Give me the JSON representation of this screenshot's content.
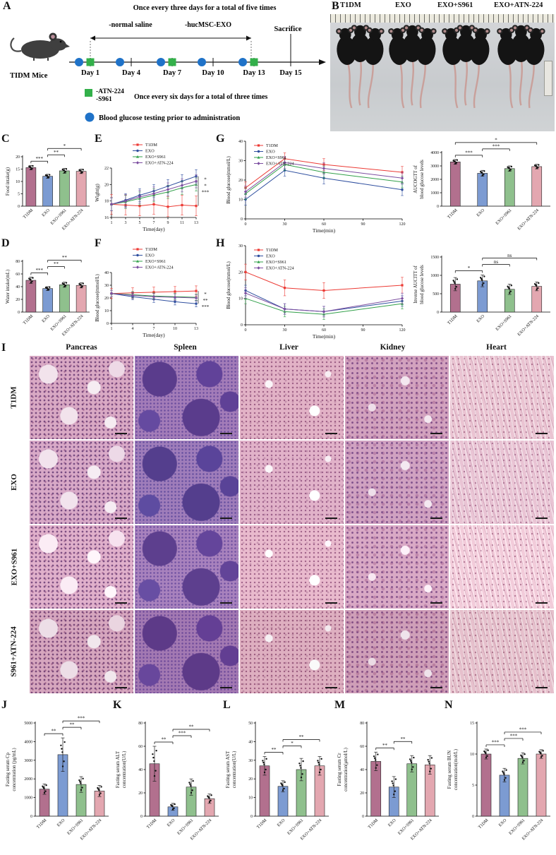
{
  "groups": [
    "T1DM",
    "EXO",
    "EXO+S961",
    "EXO+ATN-224"
  ],
  "colors": {
    "bar1": "#b2708e",
    "bar2": "#7c9bd2",
    "bar3": "#8fc08d",
    "bar4": "#e3a7b0",
    "line1": "#ec3a34",
    "line2": "#2f4f9f",
    "line3": "#32a04a",
    "line4": "#7c4ea0",
    "dot_blue": "#1f72c8",
    "square_green": "#33b04a"
  },
  "panelA": {
    "label": "A",
    "top_text": "Once every three days for a total of five times",
    "saline_text": "-normal saline",
    "exo_text": "-hucMSC-EXO",
    "sacrifice_text": "Sacrifice",
    "mice_label": "TIDM Mice",
    "days": [
      "Day 1",
      "Day 4",
      "Day 7",
      "Day 10",
      "Day 13",
      "Day 15"
    ],
    "legend_atn": "-ATN-224",
    "legend_s961": "-S961",
    "legend_square_text": "Once every six days for a total of three times",
    "legend_circle_text": "Blood glucose testing prior to administration"
  },
  "panelB": {
    "label": "B",
    "groups": [
      "T1DM",
      "EXO",
      "EXO+S961",
      "EXO+ATN-224"
    ]
  },
  "panelI": {
    "label": "I",
    "columns": [
      "Pancreas",
      "Spleen",
      "Liver",
      "Kidney",
      "Heart"
    ],
    "rows": [
      "T1DM",
      "EXO",
      "EXO+S961",
      "S961+ATN-224"
    ]
  },
  "panel_labels": {
    "C": "C",
    "D": "D",
    "E": "E",
    "F": "F",
    "G": "G",
    "H": "H",
    "J": "J",
    "K": "K",
    "L": "L",
    "M": "M",
    "N": "N"
  },
  "chart_data": {
    "C": {
      "type": "bar",
      "ylabel": "Food intake(g)",
      "categories": [
        "T1DM",
        "EXO",
        "EXO+S961",
        "EXO+ATN-224"
      ],
      "values": [
        15.6,
        12.1,
        14.3,
        14.1
      ],
      "errors": [
        0.9,
        0.8,
        1.0,
        0.9
      ],
      "ylim": [
        0,
        20
      ],
      "yticks": [
        0,
        5,
        10,
        15,
        20
      ],
      "sig": [
        {
          "a": 0,
          "b": 1,
          "label": "***"
        },
        {
          "a": 1,
          "b": 2,
          "label": "**"
        },
        {
          "a": 1,
          "b": 3,
          "label": "*"
        }
      ]
    },
    "D": {
      "type": "bar",
      "ylabel": "Water intake(mL)",
      "categories": [
        "T1DM",
        "EXO",
        "EXO+S961",
        "EXO+ATN-224"
      ],
      "values": [
        50,
        37,
        43,
        42
      ],
      "errors": [
        5,
        3,
        4,
        4
      ],
      "ylim": [
        0,
        80
      ],
      "yticks": [
        0,
        20,
        40,
        60,
        80
      ],
      "sig": [
        {
          "a": 0,
          "b": 1,
          "label": "***"
        },
        {
          "a": 1,
          "b": 2,
          "label": "**"
        },
        {
          "a": 1,
          "b": 3,
          "label": "**"
        }
      ]
    },
    "E": {
      "type": "line",
      "ylabel": "Wight(g)",
      "xlabel": "Time(day)",
      "x": [
        1,
        3,
        5,
        7,
        9,
        11,
        13
      ],
      "ylim": [
        16,
        22
      ],
      "yticks": [
        16,
        18,
        20,
        22
      ],
      "legend_pos": "top",
      "series": [
        {
          "name": "T1DM",
          "err": 1.2,
          "values": [
            17.6,
            17.5,
            17.4,
            17.6,
            17.3,
            17.5,
            17.4
          ]
        },
        {
          "name": "EXO",
          "err": 0.8,
          "values": [
            17.6,
            18.1,
            18.7,
            19.2,
            19.8,
            20.4,
            21.0
          ]
        },
        {
          "name": "EXO+S961",
          "err": 0.8,
          "values": [
            17.6,
            17.9,
            18.3,
            18.7,
            19.1,
            19.6,
            20.0
          ]
        },
        {
          "name": "EXO+ATN-224",
          "err": 0.8,
          "values": [
            17.6,
            18.0,
            18.5,
            18.9,
            19.4,
            19.9,
            20.4
          ]
        }
      ],
      "sig": [
        "*",
        "*",
        "***"
      ]
    },
    "F": {
      "type": "line",
      "ylabel": "Blood glucose(mmol/L)",
      "xlabel": "Time(day)",
      "x": [
        1,
        4,
        7,
        10,
        13
      ],
      "ylim": [
        0,
        40
      ],
      "yticks": [
        0,
        10,
        20,
        30,
        40
      ],
      "legend_pos": "top",
      "series": [
        {
          "name": "T1DM",
          "err": 4,
          "values": [
            23.5,
            24,
            24.5,
            25,
            25.5
          ]
        },
        {
          "name": "EXO",
          "err": 2.5,
          "values": [
            23.5,
            21,
            19,
            17,
            15.5
          ]
        },
        {
          "name": "EXO+S961",
          "err": 2.5,
          "values": [
            23.5,
            22.5,
            21.5,
            21,
            20.5
          ]
        },
        {
          "name": "EXO+ATN-224",
          "err": 2.5,
          "values": [
            23.5,
            22,
            21,
            20.5,
            20
          ]
        }
      ],
      "sig": [
        "*",
        "**",
        "***"
      ]
    },
    "G_line": {
      "type": "line",
      "ylabel": "Blood glucose(mmol/L)",
      "xlabel": "Time(min)",
      "x": [
        0,
        30,
        60,
        120
      ],
      "xticks": [
        0,
        30,
        60,
        90,
        120
      ],
      "ylim": [
        0,
        40
      ],
      "yticks": [
        0,
        10,
        20,
        30,
        40
      ],
      "legend_pos": "topleft",
      "series": [
        {
          "name": "T1DM",
          "err": 3,
          "values": [
            16,
            31,
            28,
            24
          ]
        },
        {
          "name": "EXO",
          "err": 3,
          "values": [
            10,
            25,
            21,
            15
          ]
        },
        {
          "name": "EXO+S961",
          "err": 3,
          "values": [
            13,
            28,
            24,
            19
          ]
        },
        {
          "name": "EXO+ATN-224",
          "err": 3,
          "values": [
            14,
            29,
            26,
            21
          ]
        }
      ]
    },
    "G_bar": {
      "type": "bar",
      "ylabel_lines": [
        "AUCOGTT of",
        "blood glucose levels"
      ],
      "categories": [
        "T1DM",
        "EXO",
        "EXO+S961",
        "EXO+ATN-224"
      ],
      "values": [
        3300,
        2450,
        2800,
        2950
      ],
      "errors": [
        180,
        220,
        200,
        170
      ],
      "ylim": [
        0,
        4000
      ],
      "yticks": [
        0,
        1000,
        2000,
        3000,
        4000
      ],
      "sig": [
        {
          "a": 0,
          "b": 1,
          "label": "***"
        },
        {
          "a": 1,
          "b": 2,
          "label": "***"
        },
        {
          "a": 0,
          "b": 3,
          "label": "*"
        }
      ]
    },
    "H_line": {
      "type": "line",
      "ylabel": "Blood glucose(mmol/L)",
      "xlabel": "Time(min)",
      "x": [
        0,
        30,
        60,
        120
      ],
      "xticks": [
        0,
        30,
        60,
        90,
        120
      ],
      "ylim": [
        0,
        30
      ],
      "yticks": [
        0,
        10,
        20,
        30
      ],
      "legend_pos": "topleft",
      "series": [
        {
          "name": "T1DM",
          "err": 3,
          "values": [
            20,
            14,
            13,
            15
          ]
        },
        {
          "name": "EXO",
          "err": 2,
          "values": [
            13,
            6,
            5,
            9
          ]
        },
        {
          "name": "EXO+S961",
          "err": 2,
          "values": [
            10,
            5,
            4,
            8
          ]
        },
        {
          "name": "EXO+ATN-224",
          "err": 2,
          "values": [
            12,
            6,
            5,
            10
          ]
        }
      ]
    },
    "H_bar": {
      "type": "bar",
      "ylabel_lines": [
        "Inverse AUCITT of",
        "blood glucose levels"
      ],
      "categories": [
        "T1DM",
        "EXO",
        "EXO+S961",
        "EXO+ATN-224"
      ],
      "values": [
        760,
        850,
        620,
        700
      ],
      "errors": [
        180,
        160,
        140,
        120
      ],
      "ylim": [
        0,
        1500
      ],
      "yticks": [
        0,
        500,
        1000,
        1500
      ],
      "sig": [
        {
          "a": 0,
          "b": 1,
          "label": "*"
        },
        {
          "a": 1,
          "b": 2,
          "label": "ns"
        },
        {
          "a": 1,
          "b": 3,
          "label": "ns"
        }
      ]
    },
    "J": {
      "type": "bar",
      "ylabel_lines": [
        "Fasting serum Cp",
        "concentration (pg/mL)"
      ],
      "categories": [
        "T1DM",
        "EXO",
        "EXO+S961",
        "EXO+ATN-224"
      ],
      "values": [
        1450,
        3300,
        1700,
        1350
      ],
      "errors": [
        280,
        900,
        420,
        300
      ],
      "ylim": [
        0,
        5000
      ],
      "yticks": [
        0,
        1000,
        2000,
        3000,
        4000,
        5000
      ],
      "sig": [
        {
          "a": 0,
          "b": 1,
          "label": "**"
        },
        {
          "a": 1,
          "b": 2,
          "label": "**"
        },
        {
          "a": 1,
          "b": 3,
          "label": "***"
        }
      ]
    },
    "K": {
      "type": "bar",
      "ylabel_lines": [
        "Fasting serum ALT",
        "concentration(U/L)"
      ],
      "categories": [
        "T1DM",
        "EXO",
        "EXO+S961",
        "EXO+ATN-224"
      ],
      "values": [
        45,
        8,
        25,
        15
      ],
      "errors": [
        15,
        3,
        7,
        4
      ],
      "ylim": [
        0,
        80
      ],
      "yticks": [
        0,
        20,
        40,
        60,
        80
      ],
      "sig": [
        {
          "a": 0,
          "b": 1,
          "label": "**"
        },
        {
          "a": 1,
          "b": 2,
          "label": "***"
        },
        {
          "a": 1,
          "b": 3,
          "label": "**"
        }
      ]
    },
    "L": {
      "type": "bar",
      "ylabel_lines": [
        "Fasting serum AST",
        "concentration(U/L)"
      ],
      "categories": [
        "T1DM",
        "EXO",
        "EXO+S961",
        "EXO+ATN-224"
      ],
      "values": [
        27,
        16,
        25,
        27
      ],
      "errors": [
        5,
        3,
        6,
        5
      ],
      "ylim": [
        0,
        50
      ],
      "yticks": [
        0,
        10,
        20,
        30,
        40,
        50
      ],
      "sig": [
        {
          "a": 0,
          "b": 1,
          "label": "**"
        },
        {
          "a": 1,
          "b": 2,
          "label": "*"
        },
        {
          "a": 1,
          "b": 3,
          "label": "**"
        }
      ]
    },
    "M": {
      "type": "bar",
      "ylabel_lines": [
        "Fasting serum Cr",
        "concentration(μmol/L)"
      ],
      "categories": [
        "T1DM",
        "EXO",
        "EXO+S961",
        "EXO+ATN-224"
      ],
      "values": [
        47,
        25,
        45,
        44
      ],
      "errors": [
        8,
        9,
        7,
        8
      ],
      "ylim": [
        0,
        80
      ],
      "yticks": [
        0,
        20,
        40,
        60,
        80
      ],
      "sig": [
        {
          "a": 0,
          "b": 1,
          "label": "**"
        },
        {
          "a": 1,
          "b": 2,
          "label": "**"
        }
      ]
    },
    "N": {
      "type": "bar",
      "ylabel_lines": [
        "Fasting serum BUN",
        "concentration(mol/L)"
      ],
      "categories": [
        "T1DM",
        "EXO",
        "EXO+S961",
        "EXO+ATN-224"
      ],
      "values": [
        10,
        6.6,
        9.3,
        10
      ],
      "errors": [
        0.8,
        1.1,
        0.9,
        0.7
      ],
      "ylim": [
        0,
        15
      ],
      "yticks": [
        0,
        5,
        10,
        15
      ],
      "sig": [
        {
          "a": 0,
          "b": 1,
          "label": "***"
        },
        {
          "a": 1,
          "b": 2,
          "label": "***"
        },
        {
          "a": 1,
          "b": 3,
          "label": "***"
        }
      ]
    }
  }
}
